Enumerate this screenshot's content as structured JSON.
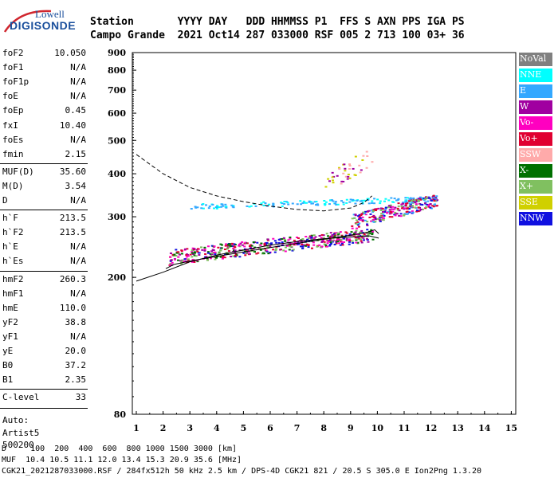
{
  "header": {
    "labels_line": "Station       YYYY DAY   DDD HHMMSS P1  FFS S AXN PPS IGA PS",
    "values_line": "Campo Grande  2021 Oct14 287 033000 RSF 005 2 713 100 03+ 36"
  },
  "logo": {
    "top": "Lowell",
    "bottom": "DIGISONDE"
  },
  "params": [
    {
      "key": "foF2",
      "value": "10.050"
    },
    {
      "key": "foF1",
      "value": "N/A"
    },
    {
      "key": "foF1p",
      "value": "N/A"
    },
    {
      "key": "foE",
      "value": "N/A"
    },
    {
      "key": "foEp",
      "value": "0.45"
    },
    {
      "key": "fxI",
      "value": "10.40"
    },
    {
      "key": "foEs",
      "value": "N/A"
    },
    {
      "key": "fmin",
      "value": "2.15"
    },
    {
      "key": "MUF(D)",
      "value": "35.60"
    },
    {
      "key": "M(D)",
      "value": "3.54"
    },
    {
      "key": "D",
      "value": "N/A"
    },
    {
      "key": "h`F",
      "value": "213.5"
    },
    {
      "key": "h`F2",
      "value": "213.5"
    },
    {
      "key": "h`E",
      "value": "N/A"
    },
    {
      "key": "h`Es",
      "value": "N/A"
    },
    {
      "key": "hmF2",
      "value": "260.3"
    },
    {
      "key": "hmF1",
      "value": "N/A"
    },
    {
      "key": "hmE",
      "value": "110.0"
    },
    {
      "key": "yF2",
      "value": "38.8"
    },
    {
      "key": "yF1",
      "value": "N/A"
    },
    {
      "key": "yE",
      "value": "20.0"
    },
    {
      "key": "B0",
      "value": "37.2"
    },
    {
      "key": "B1",
      "value": "2.35"
    },
    {
      "key": "C-level",
      "value": "33"
    }
  ],
  "auto": [
    "Auto:",
    "Artist5",
    "500200"
  ],
  "legend": [
    {
      "label": "NoVal",
      "color": "#808080"
    },
    {
      "label": "NNE",
      "color": "#00ffff"
    },
    {
      "label": "E",
      "color": "#33a8ff"
    },
    {
      "label": "W",
      "color": "#a000a0"
    },
    {
      "label": "Vo-",
      "color": "#ff00c0"
    },
    {
      "label": "Vo+",
      "color": "#e00030"
    },
    {
      "label": "SSW",
      "color": "#ffaaaa"
    },
    {
      "label": "X-",
      "color": "#007000"
    },
    {
      "label": "X+",
      "color": "#80c060"
    },
    {
      "label": "SSE",
      "color": "#d0d000"
    },
    {
      "label": "NNW",
      "color": "#1010e0"
    }
  ],
  "footer": {
    "distance_line": "D     100  200  400  600  800 1000 1500 3000 [km]",
    "muf_line": "MUF  10.4 10.5 11.1 12.0 13.4 15.3 20.9 35.6 [MHz]",
    "file_line": "CGK21_2021287033000.RSF / 284fx512h 50 kHz 2.5 km / DPS-4D CGK21 821 / 20.5 S 305.0 E Ion2Png 1.3.20"
  },
  "chart_data": {
    "type": "scatter",
    "x_ticks": [
      "1",
      "2",
      "3",
      "4",
      "5",
      "6",
      "7",
      "8",
      "9",
      "10",
      "11",
      "12",
      "13",
      "14",
      "15"
    ],
    "y_ticks": [
      "80",
      "200",
      "300",
      "400",
      "500",
      "600",
      "700",
      "800",
      "900"
    ],
    "x_range": [
      0.85,
      15.1
    ],
    "y_range_log": [
      80,
      900
    ],
    "profile_curve": [
      [
        1,
        195
      ],
      [
        2,
        207
      ],
      [
        3,
        222
      ],
      [
        4,
        232
      ],
      [
        5,
        240
      ],
      [
        6,
        248
      ],
      [
        7,
        254
      ],
      [
        8,
        259
      ],
      [
        9,
        262
      ],
      [
        9.7,
        264
      ],
      [
        10.05,
        260
      ]
    ],
    "trace_curve": [
      [
        2.1,
        212
      ],
      [
        2.4,
        218
      ],
      [
        3,
        223
      ],
      [
        4,
        230
      ],
      [
        5,
        237
      ],
      [
        6,
        244
      ],
      [
        7,
        251
      ],
      [
        8,
        258
      ],
      [
        9,
        265
      ],
      [
        9.6,
        270
      ],
      [
        9.9,
        275
      ],
      [
        10.05,
        268
      ]
    ],
    "model_topside": [
      [
        1,
        455
      ],
      [
        2,
        400
      ],
      [
        3,
        365
      ],
      [
        4,
        345
      ],
      [
        5,
        332
      ],
      [
        6,
        322
      ],
      [
        7,
        315
      ],
      [
        8,
        312
      ],
      [
        9,
        318
      ],
      [
        9.5,
        330
      ],
      [
        9.8,
        345
      ]
    ],
    "echo_bands": [
      {
        "x": [
          2.2,
          9.8
        ],
        "y": [
          225,
          278
        ],
        "n": 520,
        "colors": [
          "#e00030",
          "#ff00c0",
          "#a000a0",
          "#1010e0",
          "#007000",
          "#80c060"
        ]
      },
      {
        "x": [
          3,
          12.2
        ],
        "y": [
          320,
          345
        ],
        "n": 160,
        "colors": [
          "#33a8ff",
          "#00ffff"
        ]
      },
      {
        "x": [
          9,
          12.2
        ],
        "y": [
          285,
          350
        ],
        "n": 260,
        "colors": [
          "#a000a0",
          "#ff00c0",
          "#1010e0",
          "#e00030",
          "#33a8ff",
          "#80c060"
        ]
      },
      {
        "x": [
          8,
          9.8
        ],
        "y": [
          360,
          480
        ],
        "n": 40,
        "colors": [
          "#d0d000",
          "#ffaaaa",
          "#a000a0"
        ]
      }
    ]
  }
}
